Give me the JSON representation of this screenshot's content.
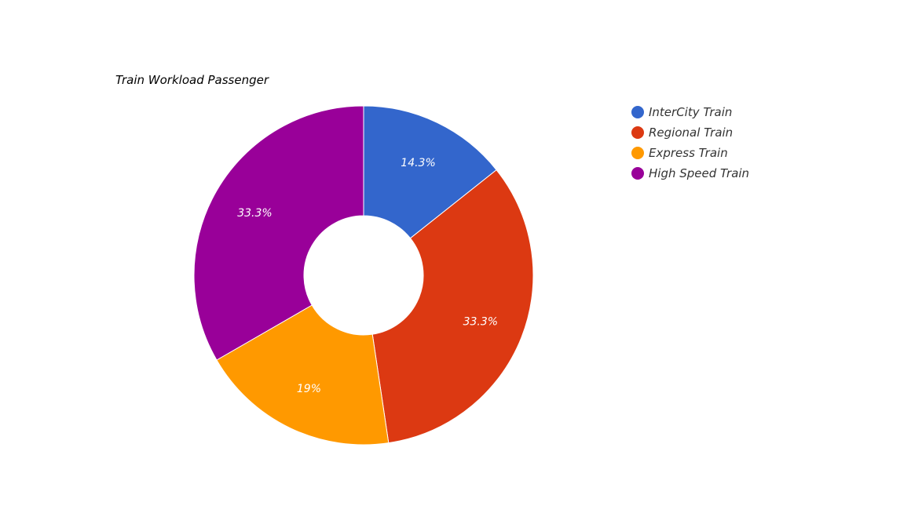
{
  "chart_data": {
    "type": "pie",
    "title": "Train Workload Passenger",
    "donut": true,
    "legend_position": "right",
    "categories": [
      "InterCity Train",
      "Regional Train",
      "Express Train",
      "High Speed Train"
    ],
    "values": [
      14.3,
      33.3,
      19,
      33.3
    ],
    "value_labels": [
      "14.3%",
      "33.3%",
      "19%",
      "33.3%"
    ],
    "colors": [
      "#3366cc",
      "#dc3912",
      "#ff9900",
      "#990099"
    ]
  }
}
